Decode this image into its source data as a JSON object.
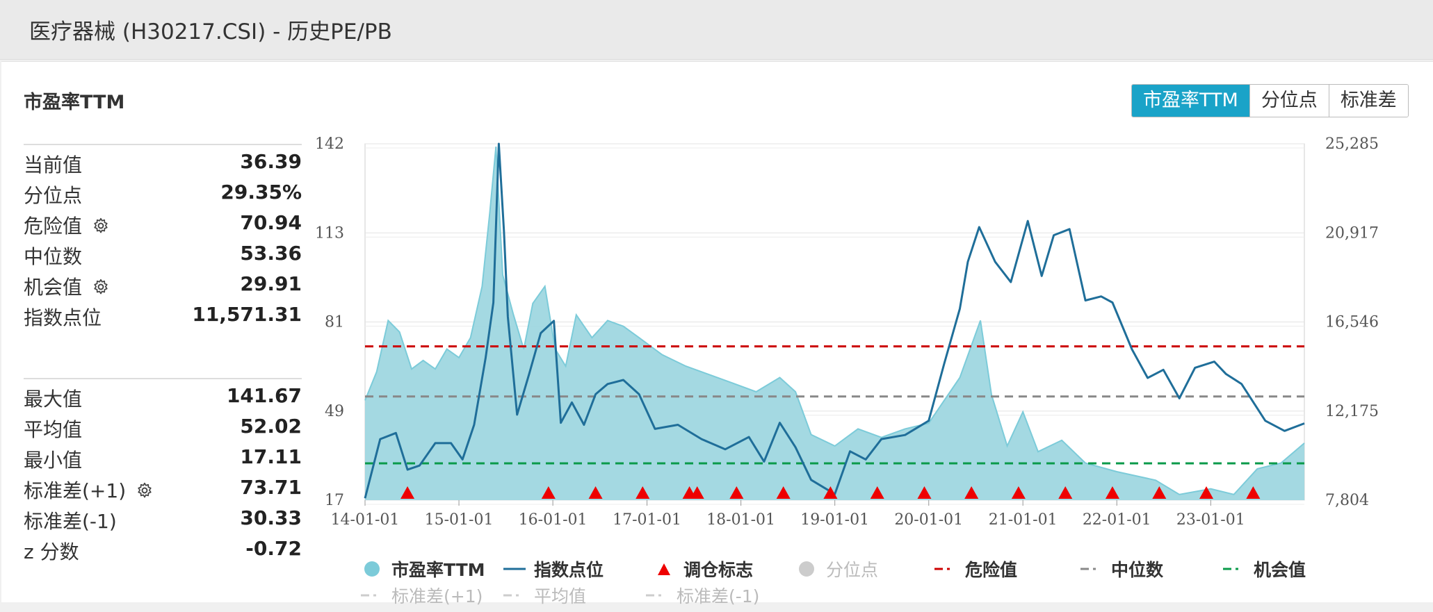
{
  "page_title": "医疗器械 (H30217.CSI) - 历史PE/PB",
  "section_title": "市盈率TTM",
  "tabs": [
    {
      "label": "市盈率TTM",
      "active": true
    },
    {
      "label": "分位点",
      "active": false
    },
    {
      "label": "标准差",
      "active": false
    }
  ],
  "stats_current": [
    {
      "label": "当前值",
      "value": "36.39",
      "gear": false
    },
    {
      "label": "分位点",
      "value": "29.35%",
      "gear": false
    },
    {
      "label": "危险值",
      "value": "70.94",
      "gear": true
    },
    {
      "label": "中位数",
      "value": "53.36",
      "gear": false
    },
    {
      "label": "机会值",
      "value": "29.91",
      "gear": true
    },
    {
      "label": "指数点位",
      "value": "11,571.31",
      "gear": false
    }
  ],
  "stats_summary": [
    {
      "label": "最大值",
      "value": "141.67",
      "gear": false
    },
    {
      "label": "平均值",
      "value": "52.02",
      "gear": false
    },
    {
      "label": "最小值",
      "value": "17.11",
      "gear": false
    },
    {
      "label": "标准差(+1)",
      "value": "73.71",
      "gear": true
    },
    {
      "label": "标准差(-1)",
      "value": "30.33",
      "gear": false
    },
    {
      "label": "z 分数",
      "value": "-0.72",
      "gear": false
    }
  ],
  "legend": [
    {
      "label": "市盈率TTM",
      "symbol": "circle",
      "color": "#7ccbd9",
      "dim": false
    },
    {
      "label": "指数点位",
      "symbol": "line",
      "color": "#1f6e99",
      "dim": false
    },
    {
      "label": "调仓标志",
      "symbol": "triangle",
      "color": "#ee0000",
      "dim": false
    },
    {
      "label": "分位点",
      "symbol": "circle",
      "color": "#cccccc",
      "dim": true
    },
    {
      "label": "危险值",
      "symbol": "dash",
      "color": "#cc0000",
      "dim": false
    },
    {
      "label": "中位数",
      "symbol": "dash",
      "color": "#888888",
      "dim": false
    },
    {
      "label": "机会值",
      "symbol": "dash",
      "color": "#0a9a4a",
      "dim": false
    },
    {
      "label": "标准差(+1)",
      "symbol": "dash",
      "color": "#cccccc",
      "dim": true
    },
    {
      "label": "平均值",
      "symbol": "dash",
      "color": "#cccccc",
      "dim": true
    },
    {
      "label": "标准差(-1)",
      "symbol": "dash",
      "color": "#cccccc",
      "dim": true
    }
  ],
  "colors": {
    "accent": "#1aa3c8",
    "pe_fill": "#9fd7e0",
    "pe_line": "#7ccbd9",
    "index_line": "#1f6e99",
    "danger": "#cc0000",
    "median": "#888888",
    "opportunity": "#0a9a4a",
    "marker": "#ee0000"
  },
  "chart_data": {
    "type": "area",
    "x_tick_labels": [
      "14-01-01",
      "15-01-01",
      "16-01-01",
      "17-01-01",
      "18-01-01",
      "19-01-01",
      "20-01-01",
      "21-01-01",
      "22-01-01",
      "23-01-01"
    ],
    "x_range": [
      "2014-01-01",
      "2023-12-31"
    ],
    "y_left_ticks": [
      "142",
      "113",
      "81",
      "49",
      "17"
    ],
    "y_left_range": [
      17,
      142
    ],
    "y_right_ticks": [
      "25,285",
      "20,917",
      "16,546",
      "12,175",
      "7,804"
    ],
    "y_right_range": [
      7804,
      25285
    ],
    "reference_lines": {
      "danger": 70.94,
      "median": 53.36,
      "opportunity": 29.91
    },
    "series": [
      {
        "name": "市盈率TTM",
        "axis": "left",
        "style": "area",
        "points": [
          [
            "2014-01-01",
            52
          ],
          [
            "2014-02-15",
            62
          ],
          [
            "2014-04-01",
            80
          ],
          [
            "2014-05-15",
            76
          ],
          [
            "2014-07-01",
            63
          ],
          [
            "2014-08-15",
            66
          ],
          [
            "2014-10-01",
            63
          ],
          [
            "2014-11-15",
            70
          ],
          [
            "2015-01-01",
            67
          ],
          [
            "2015-02-15",
            74
          ],
          [
            "2015-04-01",
            92
          ],
          [
            "2015-05-01",
            118
          ],
          [
            "2015-05-25",
            141
          ],
          [
            "2015-06-20",
            96
          ],
          [
            "2015-08-01",
            82
          ],
          [
            "2015-09-10",
            70
          ],
          [
            "2015-10-15",
            86
          ],
          [
            "2015-12-01",
            92
          ],
          [
            "2016-01-10",
            70
          ],
          [
            "2016-02-20",
            64
          ],
          [
            "2016-04-01",
            82
          ],
          [
            "2016-06-01",
            74
          ],
          [
            "2016-08-01",
            80
          ],
          [
            "2016-10-01",
            78
          ],
          [
            "2016-12-01",
            74
          ],
          [
            "2017-03-01",
            68
          ],
          [
            "2017-06-01",
            64
          ],
          [
            "2017-09-01",
            61
          ],
          [
            "2017-12-01",
            58
          ],
          [
            "2018-03-01",
            55
          ],
          [
            "2018-06-01",
            60
          ],
          [
            "2018-08-01",
            55
          ],
          [
            "2018-10-01",
            40
          ],
          [
            "2019-01-01",
            36
          ],
          [
            "2019-04-01",
            42
          ],
          [
            "2019-07-01",
            39
          ],
          [
            "2019-10-01",
            42
          ],
          [
            "2020-01-01",
            44
          ],
          [
            "2020-03-01",
            52
          ],
          [
            "2020-05-01",
            60
          ],
          [
            "2020-07-20",
            80
          ],
          [
            "2020-09-01",
            54
          ],
          [
            "2020-11-01",
            36
          ],
          [
            "2021-01-01",
            48
          ],
          [
            "2021-03-01",
            34
          ],
          [
            "2021-06-01",
            38
          ],
          [
            "2021-09-01",
            30
          ],
          [
            "2022-01-01",
            27
          ],
          [
            "2022-06-01",
            24
          ],
          [
            "2022-09-01",
            19
          ],
          [
            "2023-01-01",
            21
          ],
          [
            "2023-04-01",
            19
          ],
          [
            "2023-07-01",
            28
          ],
          [
            "2023-10-01",
            30
          ],
          [
            "2023-12-31",
            37
          ]
        ]
      },
      {
        "name": "指数点位",
        "axis": "right",
        "style": "line",
        "points": [
          [
            "2014-01-01",
            7900
          ],
          [
            "2014-03-01",
            10800
          ],
          [
            "2014-05-01",
            11100
          ],
          [
            "2014-06-15",
            9300
          ],
          [
            "2014-08-01",
            9500
          ],
          [
            "2014-10-01",
            10600
          ],
          [
            "2014-12-01",
            10600
          ],
          [
            "2015-01-15",
            9800
          ],
          [
            "2015-03-01",
            11500
          ],
          [
            "2015-04-15",
            14800
          ],
          [
            "2015-05-15",
            17500
          ],
          [
            "2015-06-05",
            25285
          ],
          [
            "2015-06-25",
            21000
          ],
          [
            "2015-07-10",
            16800
          ],
          [
            "2015-08-15",
            12000
          ],
          [
            "2015-10-01",
            14000
          ],
          [
            "2015-11-15",
            16000
          ],
          [
            "2016-01-05",
            16600
          ],
          [
            "2016-02-01",
            11600
          ],
          [
            "2016-03-15",
            12600
          ],
          [
            "2016-05-01",
            11500
          ],
          [
            "2016-06-15",
            13000
          ],
          [
            "2016-08-01",
            13500
          ],
          [
            "2016-10-01",
            13700
          ],
          [
            "2016-12-01",
            13000
          ],
          [
            "2017-02-01",
            11300
          ],
          [
            "2017-05-01",
            11500
          ],
          [
            "2017-08-01",
            10800
          ],
          [
            "2017-11-01",
            10300
          ],
          [
            "2018-02-01",
            10900
          ],
          [
            "2018-04-01",
            9700
          ],
          [
            "2018-06-01",
            11600
          ],
          [
            "2018-08-01",
            10400
          ],
          [
            "2018-10-01",
            8800
          ],
          [
            "2019-01-01",
            8100
          ],
          [
            "2019-03-01",
            10200
          ],
          [
            "2019-05-01",
            9800
          ],
          [
            "2019-07-01",
            10800
          ],
          [
            "2019-10-01",
            11000
          ],
          [
            "2020-01-01",
            11700
          ],
          [
            "2020-03-01",
            14500
          ],
          [
            "2020-05-01",
            17200
          ],
          [
            "2020-06-01",
            19500
          ],
          [
            "2020-07-15",
            21200
          ],
          [
            "2020-09-15",
            19500
          ],
          [
            "2020-11-15",
            18500
          ],
          [
            "2021-01-20",
            21500
          ],
          [
            "2021-03-15",
            18800
          ],
          [
            "2021-05-01",
            20800
          ],
          [
            "2021-07-01",
            21100
          ],
          [
            "2021-09-01",
            17600
          ],
          [
            "2021-11-01",
            17800
          ],
          [
            "2021-12-15",
            17500
          ],
          [
            "2022-03-01",
            15200
          ],
          [
            "2022-05-01",
            13800
          ],
          [
            "2022-07-01",
            14200
          ],
          [
            "2022-09-01",
            12800
          ],
          [
            "2022-11-01",
            14300
          ],
          [
            "2023-01-15",
            14600
          ],
          [
            "2023-03-01",
            14000
          ],
          [
            "2023-05-01",
            13500
          ],
          [
            "2023-08-01",
            11700
          ],
          [
            "2023-10-15",
            11200
          ],
          [
            "2023-12-31",
            11571
          ]
        ]
      }
    ],
    "rebalance_markers": [
      "2014-06-15",
      "2015-12-15",
      "2016-06-15",
      "2016-12-15",
      "2017-06-15",
      "2017-07-15",
      "2017-12-15",
      "2018-06-15",
      "2018-12-15",
      "2019-06-15",
      "2019-12-15",
      "2020-06-15",
      "2020-12-15",
      "2021-06-15",
      "2021-12-15",
      "2022-06-15",
      "2022-12-15",
      "2023-06-15"
    ],
    "grid": true,
    "legend_position": "bottom"
  }
}
